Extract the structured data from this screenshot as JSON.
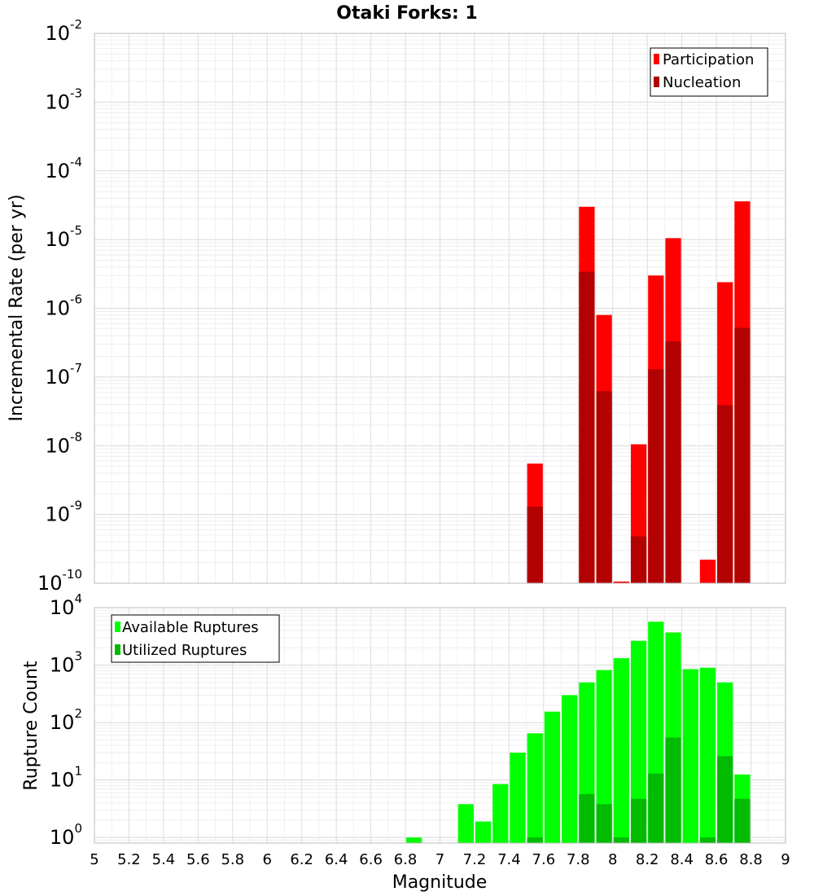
{
  "chart_data": {
    "type": "bar",
    "title": "Otaki Forks: 1",
    "xlabel": "Magnitude",
    "xlim": [
      5,
      9
    ],
    "x_ticks": [
      "5",
      "5.2",
      "5.4",
      "5.6",
      "5.8",
      "6",
      "6.2",
      "6.4",
      "6.6",
      "6.8",
      "7",
      "7.2",
      "7.4",
      "7.6",
      "7.8",
      "8",
      "8.2",
      "8.4",
      "8.6",
      "8.8",
      "9"
    ],
    "panels": [
      {
        "id": "rate",
        "ylabel": "Incremental Rate (per yr)",
        "yscale": "log",
        "ylim": [
          1e-10,
          0.01
        ],
        "y_ticks": [
          {
            "value": 1e-10,
            "base": "10",
            "exp": "-10"
          },
          {
            "value": 1e-09,
            "base": "10",
            "exp": "-9"
          },
          {
            "value": 1e-08,
            "base": "10",
            "exp": "-8"
          },
          {
            "value": 1e-07,
            "base": "10",
            "exp": "-7"
          },
          {
            "value": 1e-06,
            "base": "10",
            "exp": "-6"
          },
          {
            "value": 1e-05,
            "base": "10",
            "exp": "-5"
          },
          {
            "value": 0.0001,
            "base": "10",
            "exp": "-4"
          },
          {
            "value": 0.001,
            "base": "10",
            "exp": "-3"
          },
          {
            "value": 0.01,
            "base": "10",
            "exp": "-2"
          }
        ],
        "legend_position": "top-right",
        "series": [
          {
            "name": "Participation",
            "color": "#ff0000",
            "points": [
              {
                "x": 7.55,
                "y": 5.5e-09
              },
              {
                "x": 7.85,
                "y": 3e-05
              },
              {
                "x": 7.95,
                "y": 8e-07
              },
              {
                "x": 8.05,
                "y": 1e-10
              },
              {
                "x": 8.15,
                "y": 1.05e-08
              },
              {
                "x": 8.25,
                "y": 3e-06
              },
              {
                "x": 8.35,
                "y": 1.05e-05
              },
              {
                "x": 8.55,
                "y": 2.2e-10
              },
              {
                "x": 8.65,
                "y": 2.4e-06
              },
              {
                "x": 8.75,
                "y": 3.6e-05
              }
            ]
          },
          {
            "name": "Nucleation",
            "color": "#b30000",
            "points": [
              {
                "x": 7.55,
                "y": 1.3e-09
              },
              {
                "x": 7.85,
                "y": 3.4e-06
              },
              {
                "x": 7.95,
                "y": 6.2e-08
              },
              {
                "x": 8.15,
                "y": 4.8e-10
              },
              {
                "x": 8.25,
                "y": 1.3e-07
              },
              {
                "x": 8.35,
                "y": 3.3e-07
              },
              {
                "x": 8.65,
                "y": 3.9e-08
              },
              {
                "x": 8.75,
                "y": 5.2e-07
              }
            ]
          }
        ]
      },
      {
        "id": "count",
        "ylabel": "Rupture Count",
        "yscale": "log",
        "ylim": [
          0.8,
          10000
        ],
        "y_ticks": [
          {
            "value": 1,
            "base": "10",
            "exp": "0"
          },
          {
            "value": 10,
            "base": "10",
            "exp": "1"
          },
          {
            "value": 100,
            "base": "10",
            "exp": "2"
          },
          {
            "value": 1000,
            "base": "10",
            "exp": "3"
          },
          {
            "value": 10000,
            "base": "10",
            "exp": "4"
          }
        ],
        "legend_position": "top-left",
        "series": [
          {
            "name": "Available Ruptures",
            "color": "#00ff00",
            "points": [
              {
                "x": 6.85,
                "y": 1
              },
              {
                "x": 7.15,
                "y": 3.8
              },
              {
                "x": 7.25,
                "y": 1.9
              },
              {
                "x": 7.35,
                "y": 8.5
              },
              {
                "x": 7.45,
                "y": 30
              },
              {
                "x": 7.55,
                "y": 65
              },
              {
                "x": 7.65,
                "y": 155
              },
              {
                "x": 7.75,
                "y": 300
              },
              {
                "x": 7.85,
                "y": 500
              },
              {
                "x": 7.95,
                "y": 820
              },
              {
                "x": 8.05,
                "y": 1320
              },
              {
                "x": 8.15,
                "y": 2650
              },
              {
                "x": 8.25,
                "y": 5700
              },
              {
                "x": 8.35,
                "y": 3700
              },
              {
                "x": 8.45,
                "y": 850
              },
              {
                "x": 8.55,
                "y": 900
              },
              {
                "x": 8.65,
                "y": 500
              },
              {
                "x": 8.75,
                "y": 12.5
              }
            ]
          },
          {
            "name": "Utilized Ruptures",
            "color": "#00bb00",
            "points": [
              {
                "x": 7.55,
                "y": 1
              },
              {
                "x": 7.85,
                "y": 5.7
              },
              {
                "x": 7.95,
                "y": 3.8
              },
              {
                "x": 8.05,
                "y": 1
              },
              {
                "x": 8.15,
                "y": 4.7
              },
              {
                "x": 8.25,
                "y": 13
              },
              {
                "x": 8.35,
                "y": 55
              },
              {
                "x": 8.55,
                "y": 1
              },
              {
                "x": 8.65,
                "y": 26
              },
              {
                "x": 8.75,
                "y": 4.7
              }
            ]
          }
        ]
      }
    ]
  }
}
